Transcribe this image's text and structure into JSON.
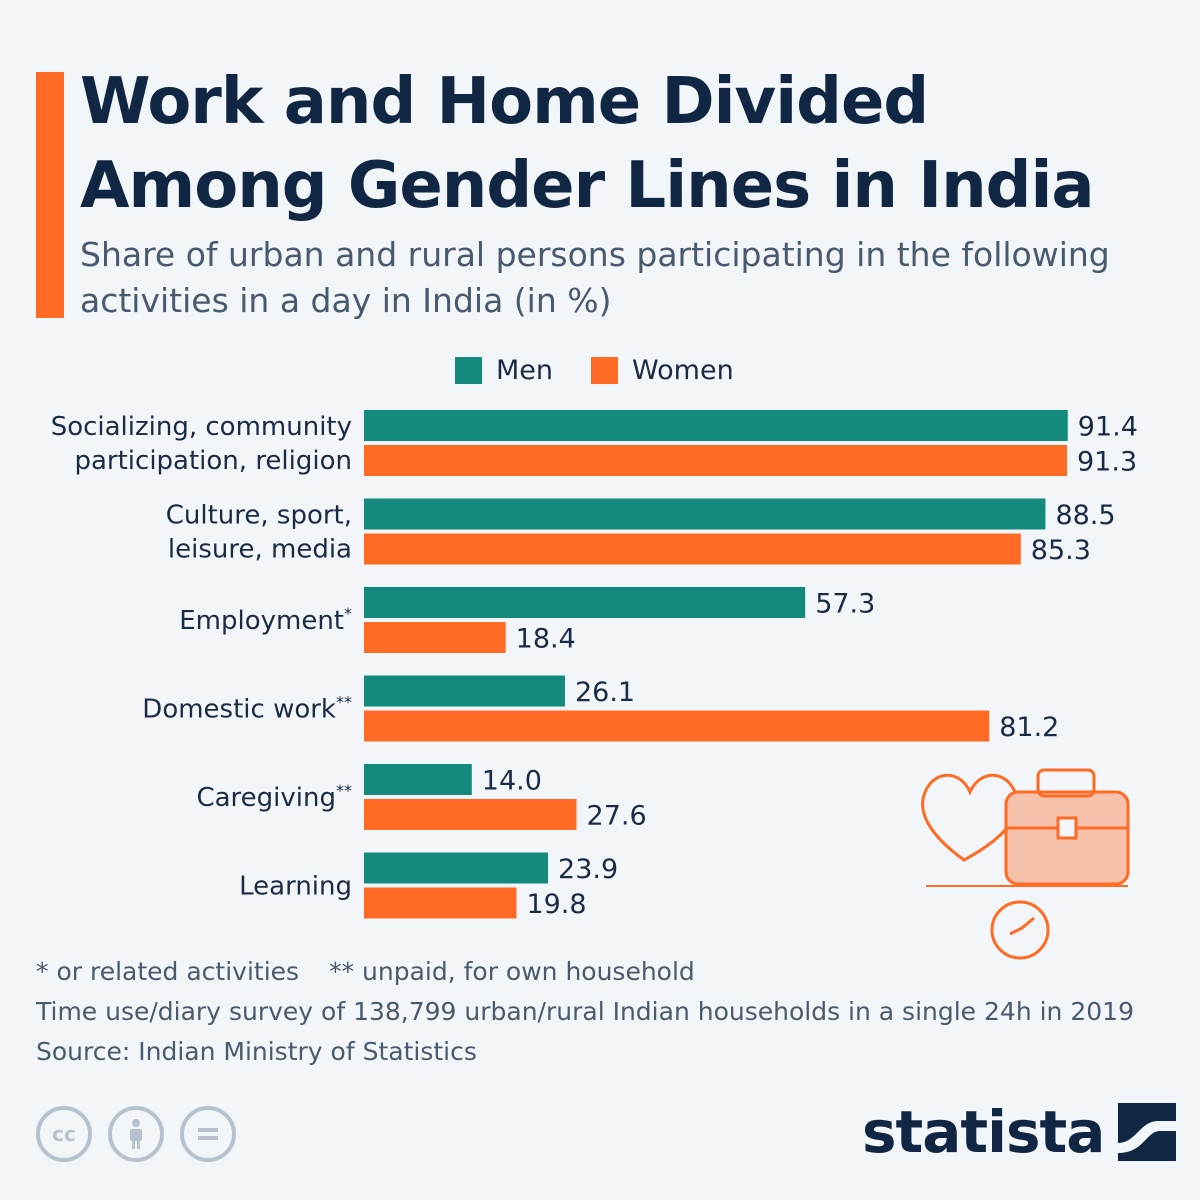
{
  "title": "Work and Home Divided Among Gender Lines in India",
  "subtitle": "Share of urban and rural persons participating in the following activities in a day in India (in %)",
  "colors": {
    "men": "#148a7d",
    "women": "#ff6b24",
    "accent": "#ff6b24",
    "text": "#1b2b45"
  },
  "chart_data": {
    "type": "bar",
    "orientation": "horizontal",
    "title": "Work and Home Divided Among Gender Lines in India",
    "subtitle": "Share of urban and rural persons participating in the following activities in a day in India (in %)",
    "legend": [
      "Men",
      "Women"
    ],
    "legend_position": "top",
    "categories": [
      {
        "lines": [
          "Socializing, community",
          "participation, religion"
        ],
        "sup": ""
      },
      {
        "lines": [
          "Culture, sport,",
          "leisure, media"
        ],
        "sup": ""
      },
      {
        "lines": [
          "Employment"
        ],
        "sup": "*"
      },
      {
        "lines": [
          "Domestic work"
        ],
        "sup": "**"
      },
      {
        "lines": [
          "Caregiving"
        ],
        "sup": "**"
      },
      {
        "lines": [
          "Learning"
        ],
        "sup": ""
      }
    ],
    "series": [
      {
        "name": "Men",
        "values": [
          91.4,
          88.5,
          57.3,
          26.1,
          14.0,
          23.9
        ]
      },
      {
        "name": "Women",
        "values": [
          91.3,
          85.3,
          18.4,
          81.2,
          27.6,
          19.8
        ]
      }
    ],
    "value_format": "0.1",
    "xlim": [
      0,
      100
    ],
    "grid": false
  },
  "notes": {
    "line1_a": "* or related activities",
    "line1_b": "** unpaid, for own household",
    "line2": "Time use/diary survey of 138,799 urban/rural Indian households in a single 24h in 2019",
    "source": "Source: Indian Ministry of Statistics"
  },
  "license_icons": [
    "cc-icon",
    "attribution-icon",
    "no-derivatives-icon"
  ],
  "brand": {
    "name": "statista"
  }
}
